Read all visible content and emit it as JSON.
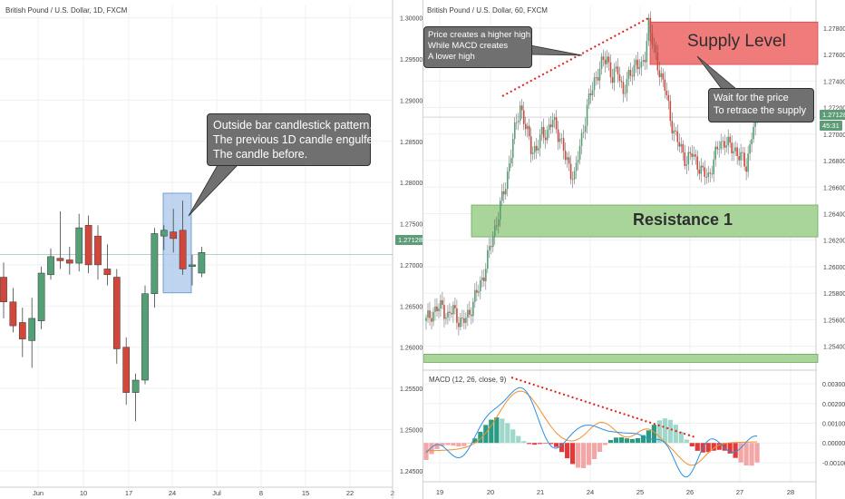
{
  "chart_data": [
    {
      "type": "candlestick",
      "title": "British Pound / U.S. Dollar, 1D, FXCM",
      "y_ticks": [
        "1.30000",
        "1.29500",
        "1.29000",
        "1.28500",
        "1.28000",
        "1.27500",
        "1.27000",
        "1.26500",
        "1.26000",
        "1.25500",
        "1.25000",
        "1.24500"
      ],
      "x_ticks": [
        "Jun",
        "10",
        "17",
        "24",
        "Jul",
        "8",
        "15",
        "22",
        "2"
      ],
      "current_price": "1.27128",
      "ylim": [
        1.243,
        1.3015
      ],
      "candles": [
        {
          "o": 1.2685,
          "h": 1.2703,
          "l": 1.2635,
          "c": 1.2655
        },
        {
          "o": 1.2655,
          "h": 1.2672,
          "l": 1.2618,
          "c": 1.2626
        },
        {
          "o": 1.263,
          "h": 1.2648,
          "l": 1.2588,
          "c": 1.261
        },
        {
          "o": 1.2608,
          "h": 1.266,
          "l": 1.2575,
          "c": 1.2635
        },
        {
          "o": 1.2632,
          "h": 1.2698,
          "l": 1.2622,
          "c": 1.269
        },
        {
          "o": 1.2688,
          "h": 1.272,
          "l": 1.2682,
          "c": 1.271
        },
        {
          "o": 1.2708,
          "h": 1.2765,
          "l": 1.2695,
          "c": 1.2705
        },
        {
          "o": 1.2706,
          "h": 1.2722,
          "l": 1.2688,
          "c": 1.2702
        },
        {
          "o": 1.2702,
          "h": 1.2762,
          "l": 1.2692,
          "c": 1.2745
        },
        {
          "o": 1.2748,
          "h": 1.276,
          "l": 1.269,
          "c": 1.27
        },
        {
          "o": 1.2735,
          "h": 1.2748,
          "l": 1.2682,
          "c": 1.27
        },
        {
          "o": 1.2695,
          "h": 1.2725,
          "l": 1.2675,
          "c": 1.2688
        },
        {
          "o": 1.2685,
          "h": 1.2695,
          "l": 1.258,
          "c": 1.2598
        },
        {
          "o": 1.26,
          "h": 1.2612,
          "l": 1.253,
          "c": 1.2545
        },
        {
          "o": 1.2545,
          "h": 1.2568,
          "l": 1.251,
          "c": 1.256
        },
        {
          "o": 1.256,
          "h": 1.2675,
          "l": 1.2555,
          "c": 1.2665
        },
        {
          "o": 1.2665,
          "h": 1.2745,
          "l": 1.2648,
          "c": 1.2738
        },
        {
          "o": 1.2735,
          "h": 1.2748,
          "l": 1.2718,
          "c": 1.2742
        },
        {
          "o": 1.274,
          "h": 1.2768,
          "l": 1.2715,
          "c": 1.2732
        },
        {
          "o": 1.2742,
          "h": 1.2778,
          "l": 1.2688,
          "c": 1.2695
        },
        {
          "o": 1.2698,
          "h": 1.2712,
          "l": 1.2675,
          "c": 1.27
        },
        {
          "o": 1.269,
          "h": 1.2722,
          "l": 1.2685,
          "c": 1.2715
        }
      ],
      "annotations": {
        "callout_lines": [
          "Outside bar candlestick pattern.",
          "The previous 1D candle engulfed",
          "The candle before."
        ],
        "highlight_box": {
          "price_top": 1.2787,
          "price_bottom": 1.2666
        }
      }
    },
    {
      "type": "candlestick",
      "title": "British Pound / U.S. Dollar, 60, FXCM",
      "y_ticks": [
        "1.27800",
        "1.27600",
        "1.27400",
        "1.27200",
        "1.27000",
        "1.26800",
        "1.26600",
        "1.26400",
        "1.26200",
        "1.26000",
        "1.25800",
        "1.25600",
        "1.25400"
      ],
      "x_ticks": [
        "19",
        "20",
        "21",
        "24",
        "25",
        "26",
        "27",
        "28"
      ],
      "current_price": "1.27128",
      "countdown": "45:31",
      "ylim": [
        1.2522,
        1.2797
      ],
      "series_points": [
        [
          0,
          1.2559
        ],
        [
          3,
          1.2565
        ],
        [
          6,
          1.2568
        ],
        [
          9,
          1.257
        ],
        [
          12,
          1.2562
        ],
        [
          15,
          1.2568
        ],
        [
          18,
          1.256
        ],
        [
          20,
          1.2557
        ],
        [
          24,
          1.2566
        ],
        [
          28,
          1.258
        ],
        [
          32,
          1.2595
        ],
        [
          36,
          1.2618
        ],
        [
          40,
          1.264
        ],
        [
          44,
          1.2662
        ],
        [
          48,
          1.2695
        ],
        [
          52,
          1.2722
        ],
        [
          55,
          1.2705
        ],
        [
          58,
          1.269
        ],
        [
          61,
          1.2688
        ],
        [
          64,
          1.27
        ],
        [
          67,
          1.2702
        ],
        [
          70,
          1.271
        ],
        [
          74,
          1.2698
        ],
        [
          77,
          1.2682
        ],
        [
          80,
          1.2672
        ],
        [
          82,
          1.2668
        ],
        [
          85,
          1.269
        ],
        [
          89,
          1.272
        ],
        [
          93,
          1.274
        ],
        [
          96,
          1.275
        ],
        [
          100,
          1.2758
        ],
        [
          103,
          1.2742
        ],
        [
          106,
          1.2748
        ],
        [
          109,
          1.2732
        ],
        [
          113,
          1.2745
        ],
        [
          116,
          1.2755
        ],
        [
          119,
          1.2748
        ],
        [
          121,
          1.276
        ],
        [
          123,
          1.2785
        ],
        [
          126,
          1.2762
        ],
        [
          129,
          1.2748
        ],
        [
          132,
          1.2735
        ],
        [
          135,
          1.2712
        ],
        [
          138,
          1.2698
        ],
        [
          141,
          1.2688
        ],
        [
          144,
          1.268
        ],
        [
          147,
          1.2685
        ],
        [
          150,
          1.2678
        ],
        [
          153,
          1.267
        ],
        [
          156,
          1.2668
        ],
        [
          159,
          1.268
        ],
        [
          162,
          1.2692
        ],
        [
          165,
          1.2695
        ],
        [
          168,
          1.269
        ],
        [
          171,
          1.2688
        ],
        [
          174,
          1.2682
        ],
        [
          177,
          1.2676
        ],
        [
          180,
          1.27
        ],
        [
          183,
          1.2712
        ]
      ],
      "zones": [
        {
          "name": "Supply Level",
          "top": 1.27845,
          "bottom": 1.27525
        },
        {
          "name": "Resistance 1",
          "top": 1.26465,
          "bottom": 1.26225
        },
        {
          "name": "",
          "top": 1.2534,
          "bottom": 1.253
        }
      ],
      "macd": {
        "title": "MACD (12, 26, close, 9)",
        "y_ticks": [
          "0.00300",
          "0.00200",
          "0.00100",
          "0.00000",
          "-0.00100"
        ],
        "ylim": [
          -0.0016,
          0.0036
        ]
      },
      "annotations": {
        "callout_top_lines": [
          "Price creates a higher high",
          "While MACD creates",
          "A lower high"
        ],
        "callout_right_lines": [
          "Wait for the price",
          "To retrace the supply"
        ]
      }
    }
  ],
  "colors": {
    "bull": "#54a076",
    "bear": "#d2473c",
    "supply_fill": "#f07b7b",
    "resistance_fill": "#a9d49a",
    "highlight_box": "#a8c6ea",
    "price_line": "#6ba583",
    "macd_line": "#2e8fe0",
    "signal_line": "#f2902c",
    "trend_dotted": "#e02020",
    "callout_bg": "#707070"
  }
}
